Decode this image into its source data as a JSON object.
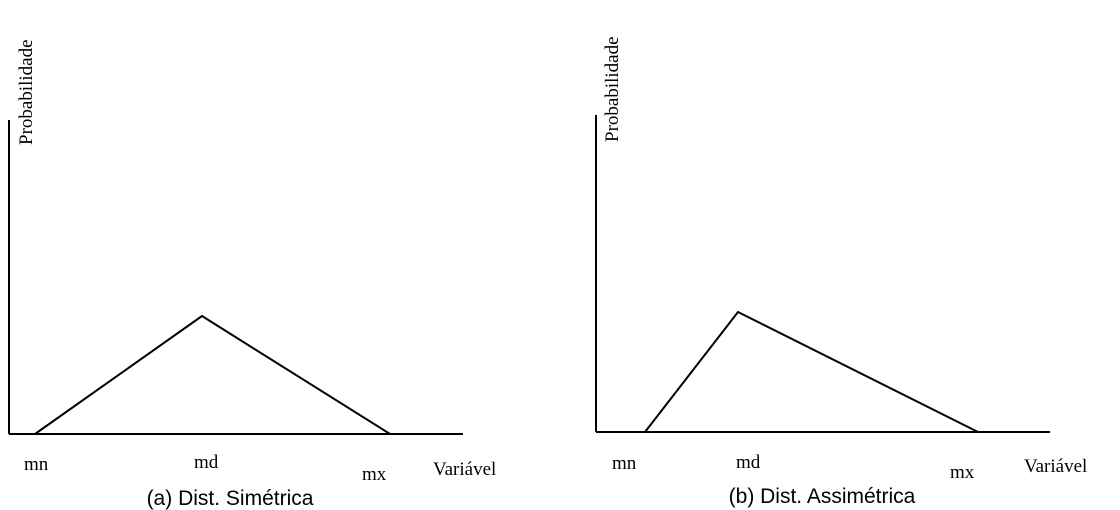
{
  "panels": [
    {
      "caption": "(a) Dist. Simétrica",
      "ylabel": "Probabilidade",
      "xlabel": "Variável",
      "ticks": {
        "mn": "mn",
        "md": "md",
        "mx": "mx"
      }
    },
    {
      "caption": "(b) Dist. Assimétrica",
      "ylabel": "Probabilidade",
      "xlabel": "Variável",
      "ticks": {
        "mn": "mn",
        "md": "md",
        "mx": "mx"
      }
    }
  ],
  "colors": {
    "line": "#000000",
    "background": "#ffffff"
  }
}
